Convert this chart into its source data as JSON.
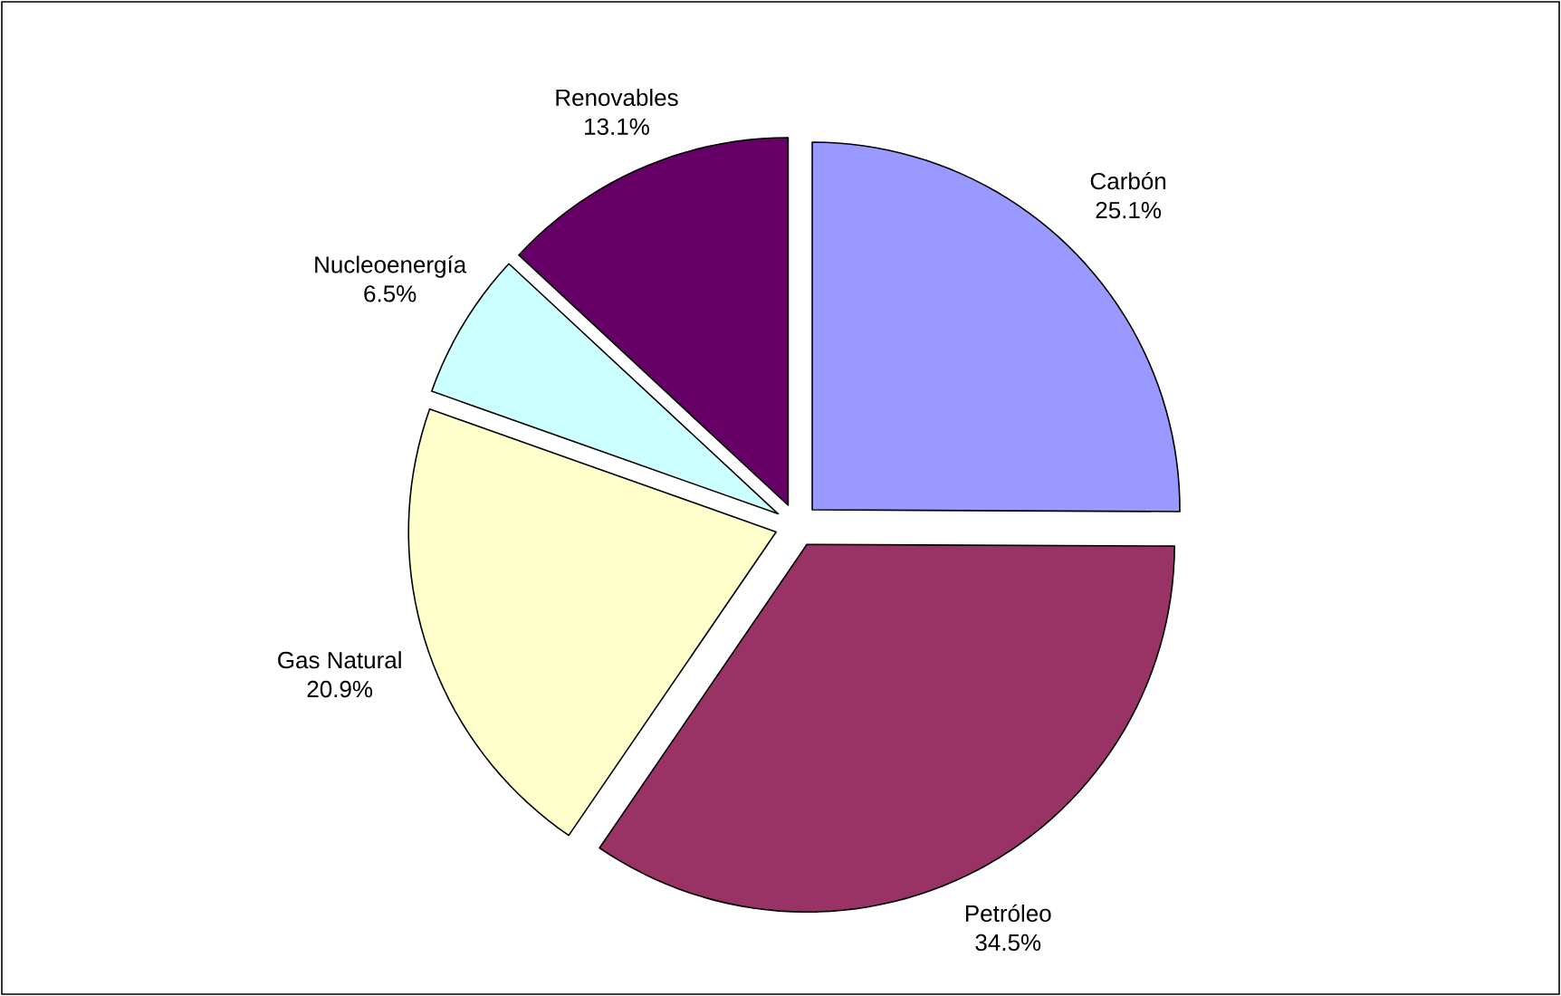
{
  "chart_data": {
    "type": "pie",
    "categories": [
      "Carbón",
      "Petróleo",
      "Gas Natural",
      "Nucleoenergía",
      "Renovables"
    ],
    "values": [
      25.1,
      34.5,
      20.9,
      6.5,
      13.1
    ],
    "colors": [
      "#9999ff",
      "#993366",
      "#ffffcc",
      "#ccffff",
      "#660066"
    ],
    "value_labels": [
      "25.1%",
      "34.5%",
      "20.9%",
      "6.5%",
      "13.1%"
    ]
  }
}
